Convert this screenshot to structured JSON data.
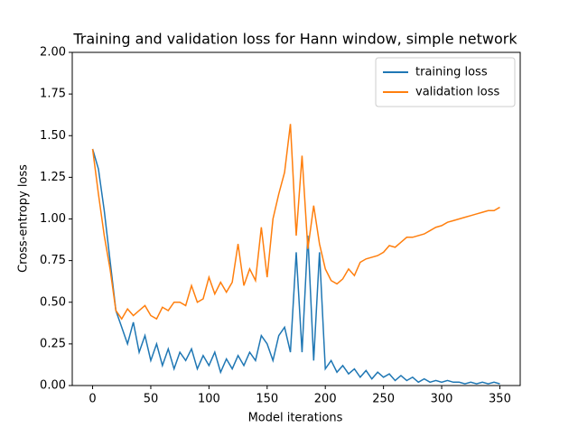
{
  "chart_data": {
    "type": "line",
    "title": "Training and validation loss for Hann window, simple network",
    "x_label": "Model iterations",
    "y_label": "Cross-entropy loss",
    "x": [
      0,
      5,
      10,
      15,
      20,
      25,
      30,
      35,
      40,
      45,
      50,
      55,
      60,
      65,
      70,
      75,
      80,
      85,
      90,
      95,
      100,
      105,
      110,
      115,
      120,
      125,
      130,
      135,
      140,
      145,
      150,
      155,
      160,
      165,
      170,
      175,
      180,
      185,
      190,
      195,
      200,
      205,
      210,
      215,
      220,
      225,
      230,
      235,
      240,
      245,
      250,
      255,
      260,
      265,
      270,
      275,
      280,
      285,
      290,
      295,
      300,
      305,
      310,
      315,
      320,
      325,
      330,
      335,
      340,
      345,
      350
    ],
    "series": [
      {
        "name": "training loss",
        "color": "#1f77b4",
        "values": [
          1.42,
          1.3,
          1.05,
          0.75,
          0.45,
          0.35,
          0.25,
          0.38,
          0.2,
          0.3,
          0.15,
          0.25,
          0.12,
          0.22,
          0.1,
          0.2,
          0.15,
          0.22,
          0.1,
          0.18,
          0.12,
          0.2,
          0.08,
          0.16,
          0.1,
          0.18,
          0.12,
          0.2,
          0.15,
          0.3,
          0.25,
          0.15,
          0.3,
          0.35,
          0.2,
          0.8,
          0.2,
          0.9,
          0.15,
          0.8,
          0.1,
          0.15,
          0.08,
          0.12,
          0.07,
          0.1,
          0.05,
          0.09,
          0.04,
          0.08,
          0.05,
          0.07,
          0.03,
          0.06,
          0.03,
          0.05,
          0.02,
          0.04,
          0.02,
          0.03,
          0.02,
          0.03,
          0.02,
          0.02,
          0.01,
          0.02,
          0.01,
          0.02,
          0.01,
          0.02,
          0.01
        ]
      },
      {
        "name": "validation loss",
        "color": "#ff7f0e",
        "values": [
          1.42,
          1.15,
          0.9,
          0.7,
          0.45,
          0.4,
          0.46,
          0.42,
          0.45,
          0.48,
          0.42,
          0.4,
          0.47,
          0.45,
          0.5,
          0.5,
          0.48,
          0.6,
          0.5,
          0.52,
          0.65,
          0.55,
          0.62,
          0.56,
          0.62,
          0.85,
          0.6,
          0.7,
          0.63,
          0.95,
          0.65,
          1.0,
          1.15,
          1.28,
          1.57,
          0.9,
          1.38,
          0.82,
          1.08,
          0.85,
          0.7,
          0.63,
          0.61,
          0.64,
          0.7,
          0.66,
          0.74,
          0.76,
          0.77,
          0.78,
          0.8,
          0.84,
          0.83,
          0.86,
          0.89,
          0.89,
          0.9,
          0.91,
          0.93,
          0.95,
          0.96,
          0.98,
          0.99,
          1.0,
          1.01,
          1.02,
          1.03,
          1.04,
          1.05,
          1.05,
          1.07
        ]
      }
    ],
    "xlim": [
      -17.5,
      367.5
    ],
    "xticks": [
      0,
      50,
      100,
      150,
      200,
      250,
      300,
      350
    ],
    "ylim": [
      0,
      2
    ],
    "yticks": [
      {
        "value": 0,
        "label": "0.00"
      },
      {
        "value": 0.25,
        "label": "0.25"
      },
      {
        "value": 0.5,
        "label": "0.50"
      },
      {
        "value": 0.75,
        "label": "0.75"
      },
      {
        "value": 1,
        "label": "1.00"
      },
      {
        "value": 1.25,
        "label": "1.25"
      },
      {
        "value": 1.5,
        "label": "1.50"
      },
      {
        "value": 1.75,
        "label": "1.75"
      },
      {
        "value": 2,
        "label": "2.00"
      }
    ],
    "legend": "upper right"
  }
}
